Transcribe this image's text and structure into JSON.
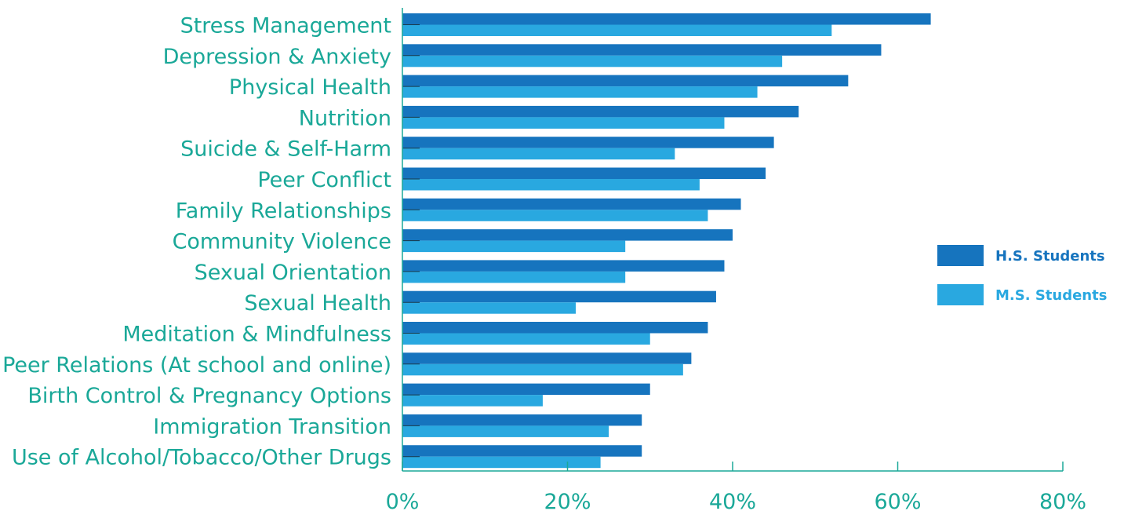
{
  "chart_data": {
    "type": "bar",
    "orientation": "horizontal",
    "categories": [
      "Stress Management",
      "Depression & Anxiety",
      "Physical Health",
      "Nutrition",
      "Suicide & Self-Harm",
      "Peer Conflict",
      "Family Relationships",
      "Community Violence",
      "Sexual Orientation",
      "Sexual Health",
      "Meditation & Mindfulness",
      "Peer Relations (At school and online)",
      "Birth Control & Pregnancy Options",
      "Immigration Transition",
      "Use of Alcohol/Tobacco/Other Drugs"
    ],
    "series": [
      {
        "name": "H.S. Students",
        "color": "#1674be",
        "values": [
          64,
          58,
          54,
          48,
          45,
          44,
          41,
          40,
          39,
          38,
          37,
          35,
          30,
          29,
          29
        ]
      },
      {
        "name": "M.S. Students",
        "color": "#29a8e0",
        "values": [
          52,
          46,
          43,
          39,
          33,
          36,
          37,
          27,
          27,
          21,
          30,
          34,
          17,
          25,
          24
        ]
      }
    ],
    "xticks": [
      "0%",
      "20%",
      "40%",
      "60%",
      "80%"
    ],
    "xlim": [
      0,
      80
    ],
    "title": "",
    "xlabel": "",
    "ylabel": "",
    "grid": false,
    "legend_position": "right",
    "axis_color": "#1aa898",
    "label_color": "#1aa898"
  }
}
